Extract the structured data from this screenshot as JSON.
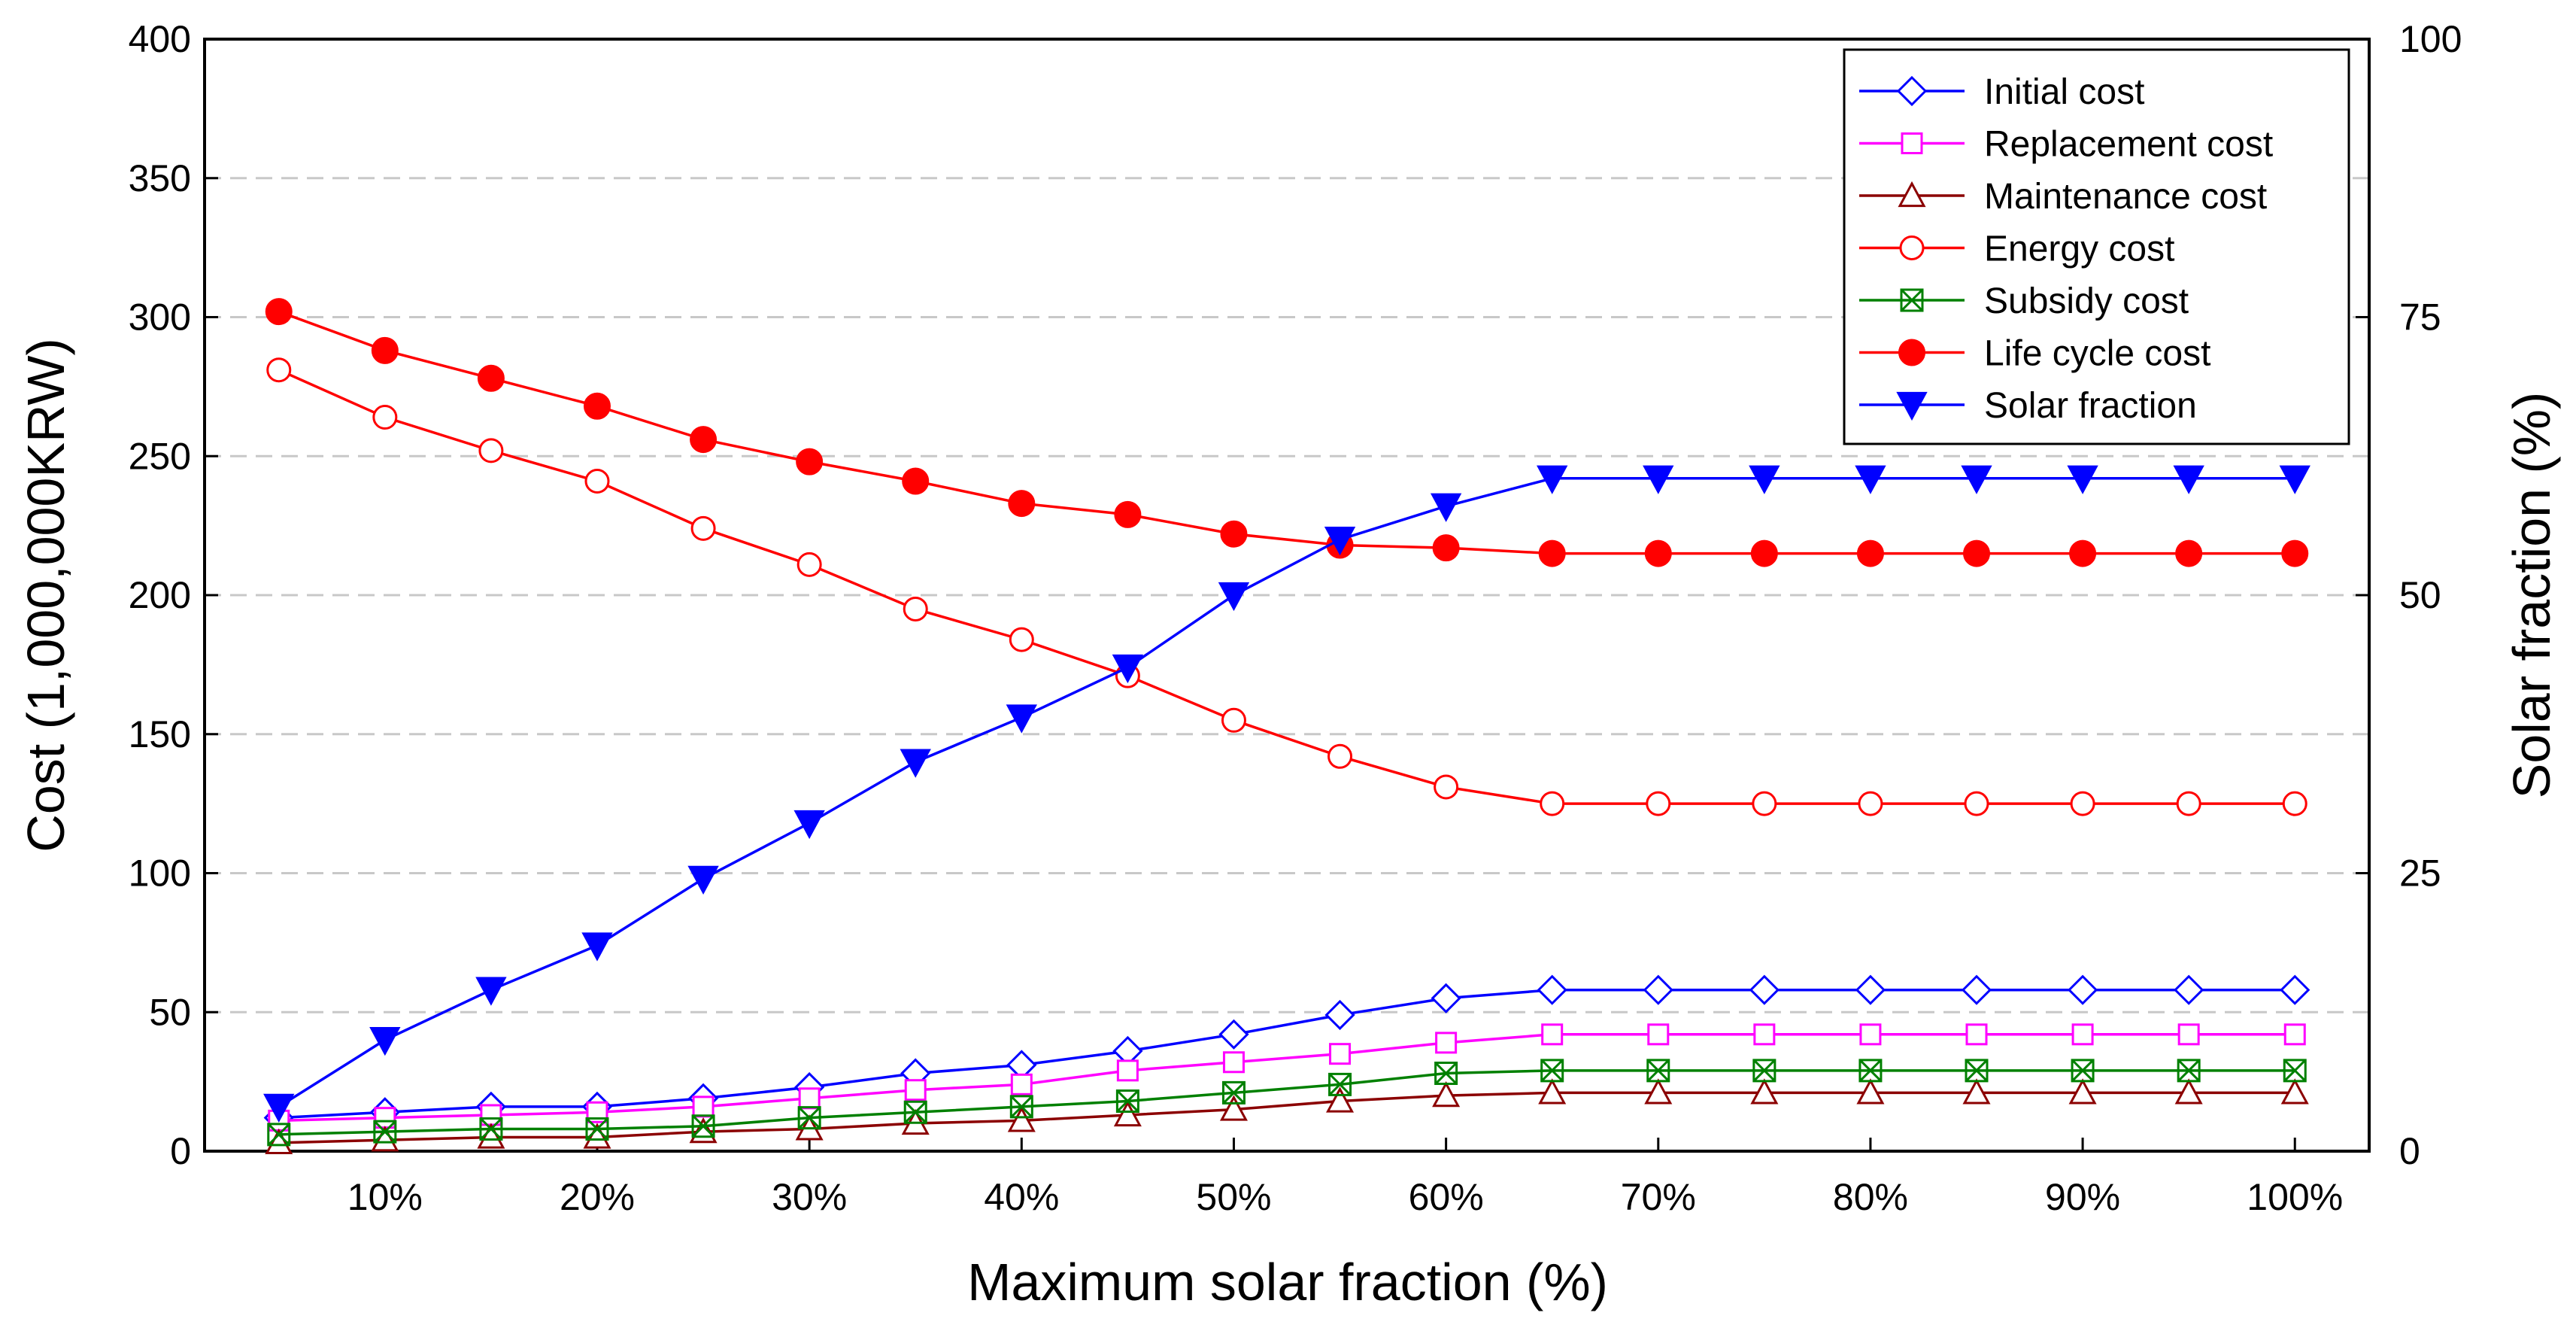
{
  "chart_data": {
    "type": "line",
    "xlabel": "Maximum solar fraction (%)",
    "ylabel": "Cost (1,000,000KRW)",
    "y2label": "Solar fraction (%)",
    "x": [
      5,
      10,
      15,
      20,
      25,
      30,
      35,
      40,
      45,
      50,
      55,
      60,
      65,
      70,
      75,
      80,
      85,
      90,
      95,
      100
    ],
    "x_tick_labels": [
      "10%",
      "20%",
      "30%",
      "40%",
      "50%",
      "60%",
      "70%",
      "80%",
      "90%",
      "100%"
    ],
    "x_tick_values": [
      10,
      20,
      30,
      40,
      50,
      60,
      70,
      80,
      90,
      100
    ],
    "xlim": [
      1.5,
      103.5
    ],
    "ylim": [
      0,
      400
    ],
    "y_ticks": [
      0,
      50,
      100,
      150,
      200,
      250,
      300,
      350,
      400
    ],
    "y2lim": [
      0,
      100
    ],
    "y2_ticks": [
      0,
      25,
      50,
      75,
      100
    ],
    "grid": "horizontal dashed",
    "legend_position": "top-right",
    "series": [
      {
        "name": "Initial cost",
        "axis": "left",
        "color": "#0000ff",
        "marker": "diamond-open",
        "values": [
          12,
          14,
          16,
          16,
          19,
          23,
          28,
          31,
          36,
          42,
          49,
          55,
          58,
          58,
          58,
          58,
          58,
          58,
          58,
          58
        ]
      },
      {
        "name": "Replacement cost",
        "axis": "left",
        "color": "#ff00ff",
        "marker": "square-open",
        "values": [
          11,
          12,
          13,
          14,
          16,
          19,
          22,
          24,
          29,
          32,
          35,
          39,
          42,
          42,
          42,
          42,
          42,
          42,
          42,
          42
        ]
      },
      {
        "name": "Maintenance cost",
        "axis": "left",
        "color": "#8b0000",
        "marker": "triangle-up-open",
        "values": [
          3,
          4,
          5,
          5,
          7,
          8,
          10,
          11,
          13,
          15,
          18,
          20,
          21,
          21,
          21,
          21,
          21,
          21,
          21,
          21
        ]
      },
      {
        "name": "Energy cost",
        "axis": "left",
        "color": "#ff0000",
        "marker": "circle-open",
        "values": [
          281,
          264,
          252,
          241,
          224,
          211,
          195,
          184,
          171,
          155,
          142,
          131,
          125,
          125,
          125,
          125,
          125,
          125,
          125,
          125
        ]
      },
      {
        "name": "Subsidy cost",
        "axis": "left",
        "color": "#008000",
        "marker": "x-open",
        "values": [
          6,
          7,
          8,
          8,
          9,
          12,
          14,
          16,
          18,
          21,
          24,
          28,
          29,
          29,
          29,
          29,
          29,
          29,
          29,
          29
        ]
      },
      {
        "name": "Life cycle cost",
        "axis": "left",
        "color": "#ff0000",
        "marker": "circle-filled",
        "values": [
          302,
          288,
          278,
          268,
          256,
          248,
          241,
          233,
          229,
          222,
          218,
          217,
          215,
          215,
          215,
          215,
          215,
          215,
          215,
          215
        ]
      },
      {
        "name": "Solar fraction",
        "axis": "right",
        "color": "#0000ff",
        "marker": "triangle-down-filled",
        "values": [
          4,
          10,
          14.5,
          18.5,
          24.5,
          29.5,
          35,
          39,
          43.5,
          50,
          55,
          58,
          60.5,
          60.5,
          60.5,
          60.5,
          60.5,
          60.5,
          60.5,
          60.5
        ]
      }
    ]
  }
}
